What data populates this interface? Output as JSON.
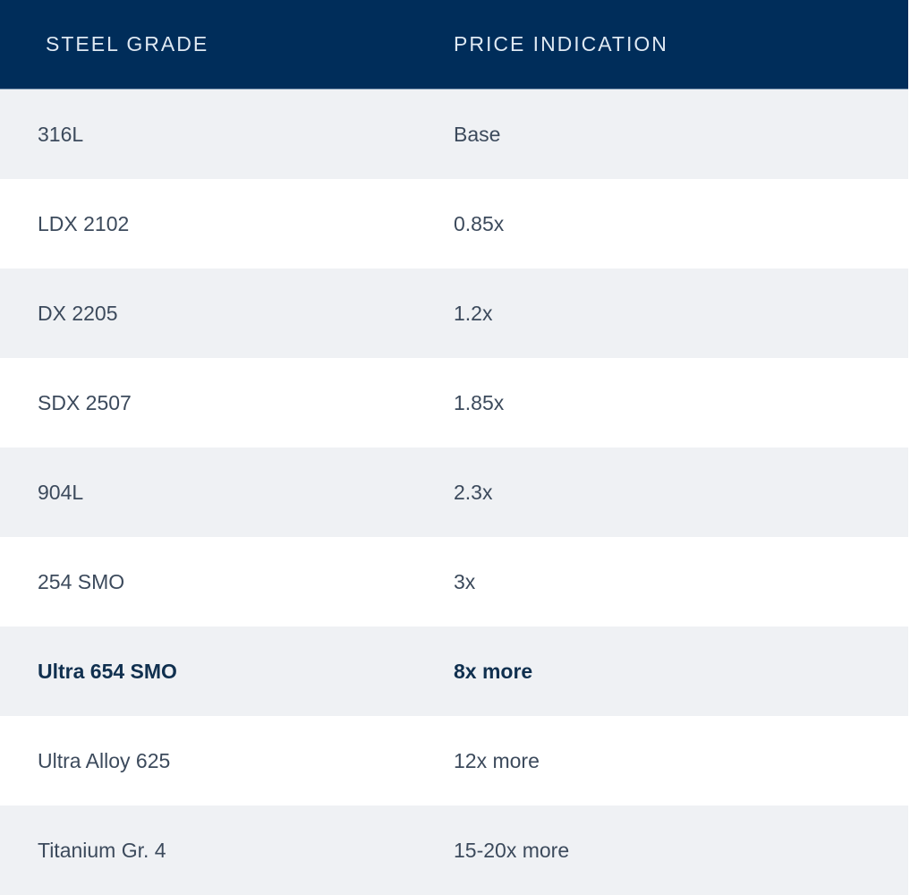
{
  "header": {
    "col1": "STEEL GRADE",
    "col2": "PRICE INDICATION"
  },
  "colors": {
    "header_bg": "#002d5a",
    "row_alt_bg": "#eff1f4",
    "text": "#3c4a5c"
  },
  "rows": [
    {
      "grade": "316L",
      "price": "Base"
    },
    {
      "grade": "LDX 2102",
      "price": "0.85x"
    },
    {
      "grade": "DX 2205",
      "price": "1.2x"
    },
    {
      "grade": "SDX 2507",
      "price": "1.85x"
    },
    {
      "grade": "904L",
      "price": "2.3x"
    },
    {
      "grade": "254 SMO",
      "price": "3x"
    },
    {
      "grade": "Ultra 654 SMO",
      "price": "8x more",
      "highlighted": true
    },
    {
      "grade": "Ultra Alloy 625",
      "price": "12x more"
    },
    {
      "grade": "Titanium Gr. 4",
      "price": "15-20x more"
    }
  ]
}
